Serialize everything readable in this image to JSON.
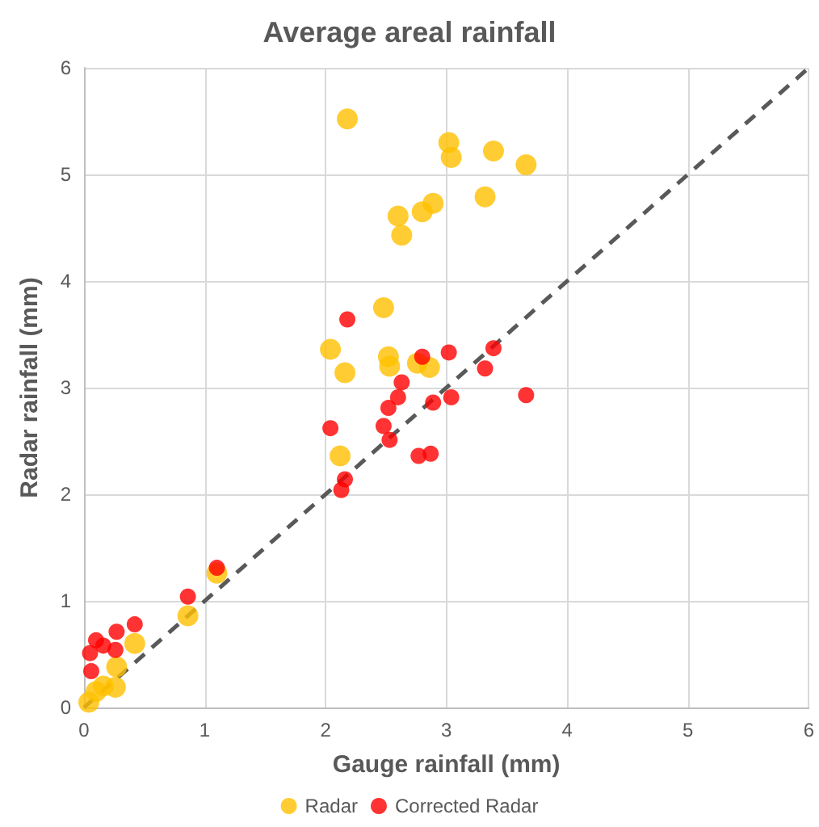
{
  "chart_data": {
    "type": "scatter",
    "title": "Average areal rainfall",
    "xlabel": "Gauge rainfall (mm)",
    "ylabel": "Radar rainfall (mm)",
    "xlim": [
      0,
      6
    ],
    "xticks": [
      0,
      1,
      2,
      3,
      4,
      5,
      6
    ],
    "ylim": [
      0,
      6
    ],
    "yticks": [
      0,
      1,
      2,
      3,
      4,
      5,
      6
    ],
    "grid": true,
    "legend": "bottom",
    "marker": "circle",
    "series": [
      {
        "name": "Radar",
        "color": "#ffc000",
        "x": [
          2.18,
          3.02,
          3.04,
          3.39,
          3.66,
          3.32,
          2.6,
          2.8,
          2.89,
          2.63,
          2.48,
          2.04,
          2.52,
          2.53,
          2.16,
          2.76,
          2.86,
          2.12,
          1.1,
          0.86,
          0.42,
          0.27,
          0.26,
          0.16,
          0.1,
          0.04
        ],
        "values": [
          5.52,
          5.3,
          5.16,
          5.22,
          5.09,
          4.79,
          4.61,
          4.65,
          4.73,
          4.43,
          3.75,
          3.36,
          3.29,
          3.2,
          3.14,
          3.23,
          3.19,
          2.36,
          1.26,
          0.86,
          0.6,
          0.38,
          0.19,
          0.2,
          0.15,
          0.05
        ]
      },
      {
        "name": "Corrected Radar",
        "color": "#ff0000",
        "x": [
          2.18,
          3.02,
          3.39,
          2.8,
          3.32,
          2.63,
          2.6,
          2.52,
          2.89,
          3.04,
          3.66,
          2.04,
          2.48,
          2.53,
          2.77,
          2.87,
          2.16,
          2.13,
          1.1,
          0.86,
          0.42,
          0.27,
          0.1,
          0.16,
          0.26,
          0.05,
          0.06
        ],
        "values": [
          3.64,
          3.33,
          3.37,
          3.29,
          3.18,
          3.05,
          2.91,
          2.81,
          2.86,
          2.91,
          2.93,
          2.62,
          2.64,
          2.51,
          2.36,
          2.38,
          2.14,
          2.04,
          1.31,
          1.04,
          0.78,
          0.71,
          0.63,
          0.58,
          0.54,
          0.51,
          0.34
        ]
      },
      {
        "type": "line",
        "color": "#595959",
        "line_style": "dashed",
        "marker": "none",
        "x": [
          0,
          6
        ],
        "values": [
          0,
          6
        ]
      }
    ]
  }
}
